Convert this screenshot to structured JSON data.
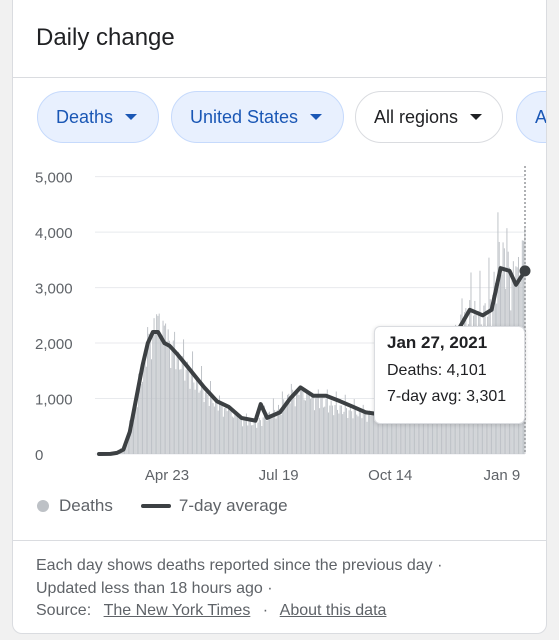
{
  "card": {
    "title": "Daily change",
    "filters": [
      {
        "label": "Deaths",
        "style": "selected"
      },
      {
        "label": "United States",
        "style": "selected"
      },
      {
        "label": "All regions",
        "style": "default"
      },
      {
        "label": "Al",
        "style": "selected"
      }
    ]
  },
  "tooltip": {
    "date": "Jan 27, 2021",
    "deaths_label": "Deaths: 4,101",
    "avg_label": "7-day avg: 3,301"
  },
  "legend": {
    "deaths": "Deaths",
    "avg": "7-day average"
  },
  "footer": {
    "line1": "Each day shows deaths reported since the previous day ·",
    "line2": "Updated less than 18 hours ago  ·",
    "source_label": "Source:",
    "source_link": "The New York Times",
    "separator": "·",
    "about_link": "About this data"
  },
  "colors": {
    "bars": "#bdc1c6",
    "avg_line": "#3c4043",
    "chip_selected_bg": "#e8f0fe",
    "chip_selected_text": "#1a57b5"
  },
  "chart_data": {
    "type": "bar",
    "title": "",
    "xlabel": "",
    "ylabel": "",
    "x_range": [
      "2020-03-01",
      "2021-01-27"
    ],
    "ylim": [
      0,
      5300
    ],
    "yticks": [
      0,
      1000,
      2000,
      3000,
      4000,
      5000
    ],
    "ytick_labels": [
      "0",
      "1,000",
      "2,000",
      "3,000",
      "4,000",
      "5,000"
    ],
    "xticks": [
      "2020-04-23",
      "2020-07-19",
      "2020-10-14",
      "2021-01-09"
    ],
    "xtick_labels": [
      "Apr 23",
      "Jul 19",
      "Oct 14",
      "Jan 9"
    ],
    "grid": true,
    "legend_position": "bottom",
    "series": [
      {
        "name": "Deaths",
        "kind": "bars",
        "points": [
          [
            "2020-03-01",
            0
          ],
          [
            "2020-03-10",
            5
          ],
          [
            "2020-03-15",
            30
          ],
          [
            "2020-03-20",
            120
          ],
          [
            "2020-03-25",
            500
          ],
          [
            "2020-03-30",
            1000
          ],
          [
            "2020-04-04",
            1600
          ],
          [
            "2020-04-08",
            2100
          ],
          [
            "2020-04-12",
            2400
          ],
          [
            "2020-04-16",
            2600
          ],
          [
            "2020-04-21",
            2400
          ],
          [
            "2020-04-25",
            2200
          ],
          [
            "2020-05-01",
            1900
          ],
          [
            "2020-05-08",
            1700
          ],
          [
            "2020-05-15",
            1450
          ],
          [
            "2020-05-22",
            1250
          ],
          [
            "2020-06-01",
            1000
          ],
          [
            "2020-06-10",
            850
          ],
          [
            "2020-06-20",
            700
          ],
          [
            "2020-07-01",
            600
          ],
          [
            "2020-07-10",
            750
          ],
          [
            "2020-07-20",
            900
          ],
          [
            "2020-07-28",
            1150
          ],
          [
            "2020-08-05",
            1200
          ],
          [
            "2020-08-15",
            1100
          ],
          [
            "2020-08-25",
            1000
          ],
          [
            "2020-09-05",
            900
          ],
          [
            "2020-09-15",
            850
          ],
          [
            "2020-09-25",
            800
          ],
          [
            "2020-10-05",
            750
          ],
          [
            "2020-10-15",
            750
          ],
          [
            "2020-10-25",
            800
          ],
          [
            "2020-11-05",
            1000
          ],
          [
            "2020-11-15",
            1300
          ],
          [
            "2020-11-25",
            1700
          ],
          [
            "2020-12-05",
            2400
          ],
          [
            "2020-12-15",
            2800
          ],
          [
            "2020-12-25",
            2700
          ],
          [
            "2021-01-01",
            3000
          ],
          [
            "2021-01-08",
            4000
          ],
          [
            "2021-01-15",
            3600
          ],
          [
            "2021-01-20",
            3400
          ],
          [
            "2021-01-27",
            4101
          ]
        ]
      },
      {
        "name": "7-day average",
        "kind": "line",
        "points": [
          [
            "2020-03-01",
            0
          ],
          [
            "2020-03-10",
            2
          ],
          [
            "2020-03-15",
            20
          ],
          [
            "2020-03-20",
            80
          ],
          [
            "2020-03-25",
            400
          ],
          [
            "2020-03-30",
            1000
          ],
          [
            "2020-04-04",
            1600
          ],
          [
            "2020-04-08",
            2000
          ],
          [
            "2020-04-12",
            2200
          ],
          [
            "2020-04-16",
            2200
          ],
          [
            "2020-04-21",
            2000
          ],
          [
            "2020-04-25",
            1950
          ],
          [
            "2020-05-01",
            1800
          ],
          [
            "2020-05-08",
            1600
          ],
          [
            "2020-05-15",
            1400
          ],
          [
            "2020-05-22",
            1200
          ],
          [
            "2020-06-01",
            950
          ],
          [
            "2020-06-10",
            850
          ],
          [
            "2020-06-20",
            650
          ],
          [
            "2020-07-01",
            600
          ],
          [
            "2020-07-05",
            900
          ],
          [
            "2020-07-10",
            650
          ],
          [
            "2020-07-20",
            750
          ],
          [
            "2020-07-28",
            1000
          ],
          [
            "2020-08-05",
            1200
          ],
          [
            "2020-08-15",
            1050
          ],
          [
            "2020-08-25",
            1050
          ],
          [
            "2020-09-05",
            950
          ],
          [
            "2020-09-15",
            850
          ],
          [
            "2020-09-25",
            750
          ],
          [
            "2020-10-05",
            720
          ],
          [
            "2020-10-15",
            720
          ],
          [
            "2020-10-25",
            780
          ],
          [
            "2020-11-05",
            980
          ],
          [
            "2020-11-15",
            1150
          ],
          [
            "2020-11-25",
            1500
          ],
          [
            "2020-12-05",
            2200
          ],
          [
            "2020-12-15",
            2600
          ],
          [
            "2020-12-25",
            2500
          ],
          [
            "2021-01-01",
            2600
          ],
          [
            "2021-01-08",
            3350
          ],
          [
            "2021-01-15",
            3300
          ],
          [
            "2021-01-20",
            3050
          ],
          [
            "2021-01-27",
            3301
          ]
        ]
      }
    ],
    "highlight": {
      "x": "2021-01-27",
      "deaths": 4101,
      "avg": 3301
    }
  }
}
